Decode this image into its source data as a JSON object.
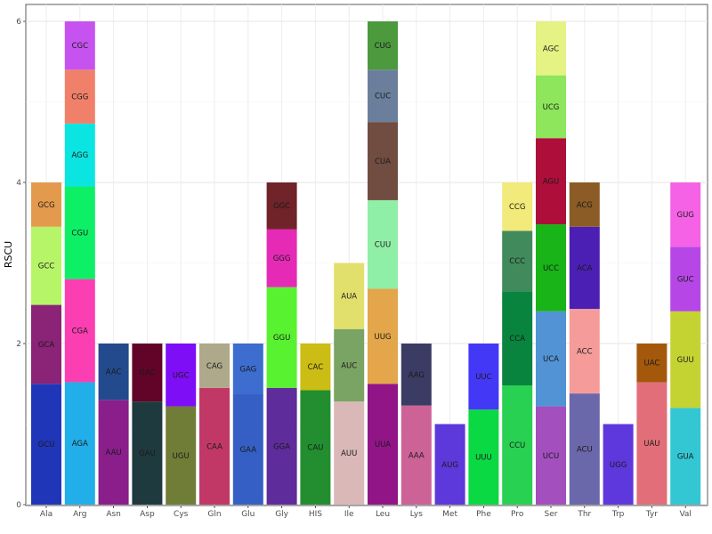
{
  "chart_data": {
    "type": "bar",
    "stacked": true,
    "title": "",
    "xlabel": "",
    "ylabel": "RSCU",
    "ylim": [
      0,
      6
    ],
    "yticks": [
      0,
      2,
      4,
      6
    ],
    "grid": true,
    "legend": "none",
    "categories": [
      "Ala",
      "Arg",
      "Asn",
      "Asp",
      "Cys",
      "Gln",
      "Glu",
      "Gly",
      "HIS",
      "Ile",
      "Leu",
      "Lys",
      "Met",
      "Phe",
      "Pro",
      "Ser",
      "Thr",
      "Trp",
      "Tyr",
      "Val"
    ],
    "bars": [
      {
        "category": "Ala",
        "segments": [
          {
            "codon": "GCU",
            "value": 1.5,
            "color": "#2036b8"
          },
          {
            "codon": "GCA",
            "value": 0.98,
            "color": "#8b2377"
          },
          {
            "codon": "GCC",
            "value": 0.97,
            "color": "#b6f567"
          },
          {
            "codon": "GCG",
            "value": 0.55,
            "color": "#e49a4c"
          }
        ]
      },
      {
        "category": "Arg",
        "segments": [
          {
            "codon": "AGA",
            "value": 1.52,
            "color": "#22aee9"
          },
          {
            "codon": "CGA",
            "value": 1.28,
            "color": "#fb3eb2"
          },
          {
            "codon": "CGU",
            "value": 1.15,
            "color": "#0df066"
          },
          {
            "codon": "AGG",
            "value": 0.78,
            "color": "#0be5e2"
          },
          {
            "codon": "CGG",
            "value": 0.67,
            "color": "#f1806a"
          },
          {
            "codon": "CGC",
            "value": 0.6,
            "color": "#c653f0"
          }
        ]
      },
      {
        "category": "Asn",
        "segments": [
          {
            "codon": "AAU",
            "value": 1.3,
            "color": "#8a1e8a"
          },
          {
            "codon": "AAC",
            "value": 0.7,
            "color": "#244a8e"
          }
        ]
      },
      {
        "category": "Asp",
        "segments": [
          {
            "codon": "GAU",
            "value": 1.28,
            "color": "#1f3a3f"
          },
          {
            "codon": "GAC",
            "value": 0.72,
            "color": "#620328"
          }
        ]
      },
      {
        "category": "Cys",
        "segments": [
          {
            "codon": "UGU",
            "value": 1.22,
            "color": "#6f7d37"
          },
          {
            "codon": "UGC",
            "value": 0.78,
            "color": "#7e0ef5"
          }
        ]
      },
      {
        "category": "Gln",
        "segments": [
          {
            "codon": "CAA",
            "value": 1.45,
            "color": "#c13866"
          },
          {
            "codon": "CAG",
            "value": 0.55,
            "color": "#aea98a"
          }
        ]
      },
      {
        "category": "Glu",
        "segments": [
          {
            "codon": "GAA",
            "value": 1.37,
            "color": "#355fc5"
          },
          {
            "codon": "GAG",
            "value": 0.63,
            "color": "#3c6dcf"
          }
        ]
      },
      {
        "category": "Gly",
        "segments": [
          {
            "codon": "GGA",
            "value": 1.45,
            "color": "#5f2c9b"
          },
          {
            "codon": "GGU",
            "value": 1.25,
            "color": "#59f230"
          },
          {
            "codon": "GGG",
            "value": 0.72,
            "color": "#e52ab5"
          },
          {
            "codon": "GGC",
            "value": 0.58,
            "color": "#71232a"
          }
        ]
      },
      {
        "category": "HIS",
        "segments": [
          {
            "codon": "CAU",
            "value": 1.42,
            "color": "#228e30"
          },
          {
            "codon": "CAC",
            "value": 0.58,
            "color": "#cbbd14"
          }
        ]
      },
      {
        "category": "Ile",
        "segments": [
          {
            "codon": "AUU",
            "value": 1.28,
            "color": "#dab8b8"
          },
          {
            "codon": "AUC",
            "value": 0.9,
            "color": "#7aa464"
          },
          {
            "codon": "AUA",
            "value": 0.82,
            "color": "#e2e06c"
          }
        ]
      },
      {
        "category": "Leu",
        "segments": [
          {
            "codon": "UUA",
            "value": 1.5,
            "color": "#921587"
          },
          {
            "codon": "UUG",
            "value": 1.18,
            "color": "#e3a64a"
          },
          {
            "codon": "CUU",
            "value": 1.1,
            "color": "#8fefa6"
          },
          {
            "codon": "CUA",
            "value": 0.97,
            "color": "#714c41"
          },
          {
            "codon": "CUC",
            "value": 0.65,
            "color": "#6b7f9d"
          },
          {
            "codon": "CUG",
            "value": 0.6,
            "color": "#4c993e"
          }
        ]
      },
      {
        "category": "Lys",
        "segments": [
          {
            "codon": "AAA",
            "value": 1.23,
            "color": "#cd6297"
          },
          {
            "codon": "AAG",
            "value": 0.77,
            "color": "#3b3c63"
          }
        ]
      },
      {
        "category": "Met",
        "segments": [
          {
            "codon": "AUG",
            "value": 1.0,
            "color": "#5d38da"
          }
        ]
      },
      {
        "category": "Phe",
        "segments": [
          {
            "codon": "UUU",
            "value": 1.18,
            "color": "#0ad944"
          },
          {
            "codon": "UUC",
            "value": 0.82,
            "color": "#4438f7"
          }
        ]
      },
      {
        "category": "Pro",
        "segments": [
          {
            "codon": "CCU",
            "value": 1.48,
            "color": "#28d151"
          },
          {
            "codon": "CCA",
            "value": 1.17,
            "color": "#08843f"
          },
          {
            "codon": "CCC",
            "value": 0.75,
            "color": "#418a5b"
          },
          {
            "codon": "CCG",
            "value": 0.6,
            "color": "#f2ea7a"
          }
        ]
      },
      {
        "category": "Ser",
        "segments": [
          {
            "codon": "UCU",
            "value": 1.22,
            "color": "#a34fbe"
          },
          {
            "codon": "UCA",
            "value": 1.18,
            "color": "#5193d4"
          },
          {
            "codon": "UCC",
            "value": 1.08,
            "color": "#18b418"
          },
          {
            "codon": "AGU",
            "value": 1.07,
            "color": "#ae0f3a"
          },
          {
            "codon": "UCG",
            "value": 0.78,
            "color": "#8de65b"
          },
          {
            "codon": "AGC",
            "value": 0.67,
            "color": "#e5f284"
          }
        ]
      },
      {
        "category": "Thr",
        "segments": [
          {
            "codon": "ACU",
            "value": 1.38,
            "color": "#6b67ab"
          },
          {
            "codon": "ACC",
            "value": 1.05,
            "color": "#f59c9a"
          },
          {
            "codon": "ACA",
            "value": 1.02,
            "color": "#4b1fb4"
          },
          {
            "codon": "ACG",
            "value": 0.55,
            "color": "#8b5c25"
          }
        ]
      },
      {
        "category": "Trp",
        "segments": [
          {
            "codon": "UGG",
            "value": 1.0,
            "color": "#5e38dc"
          }
        ]
      },
      {
        "category": "Tyr",
        "segments": [
          {
            "codon": "UAU",
            "value": 1.52,
            "color": "#e16e79"
          },
          {
            "codon": "UAC",
            "value": 0.48,
            "color": "#a3580b"
          }
        ]
      },
      {
        "category": "Val",
        "segments": [
          {
            "codon": "GUA",
            "value": 1.2,
            "color": "#33c7d4"
          },
          {
            "codon": "GUU",
            "value": 1.2,
            "color": "#c4d331"
          },
          {
            "codon": "GUC",
            "value": 0.8,
            "color": "#b647e6"
          },
          {
            "codon": "GUG",
            "value": 0.8,
            "color": "#f562e6"
          }
        ]
      }
    ]
  }
}
